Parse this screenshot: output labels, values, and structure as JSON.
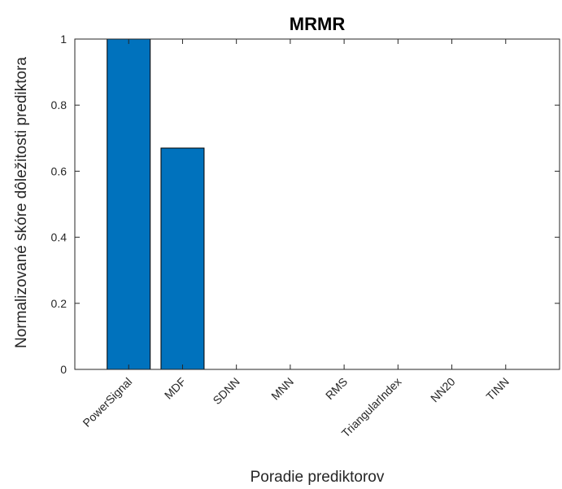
{
  "chart_data": {
    "type": "bar",
    "title": "MRMR",
    "xlabel": "Poradie prediktorov",
    "ylabel": "Normalizované skóre dôležitosti prediktora",
    "categories": [
      "PowerSignal",
      "MDF",
      "SDNN",
      "MNN",
      "RMS",
      "TriangularIndex",
      "NN20",
      "TINN"
    ],
    "values": [
      1.0,
      0.67,
      0,
      0,
      0,
      0,
      0,
      0
    ],
    "ylim": [
      0,
      1
    ],
    "yticks": [
      "0",
      "0.2",
      "0.4",
      "0.6",
      "0.8",
      "1"
    ],
    "bar_color": "#0072BD",
    "grid": false,
    "box": true
  }
}
